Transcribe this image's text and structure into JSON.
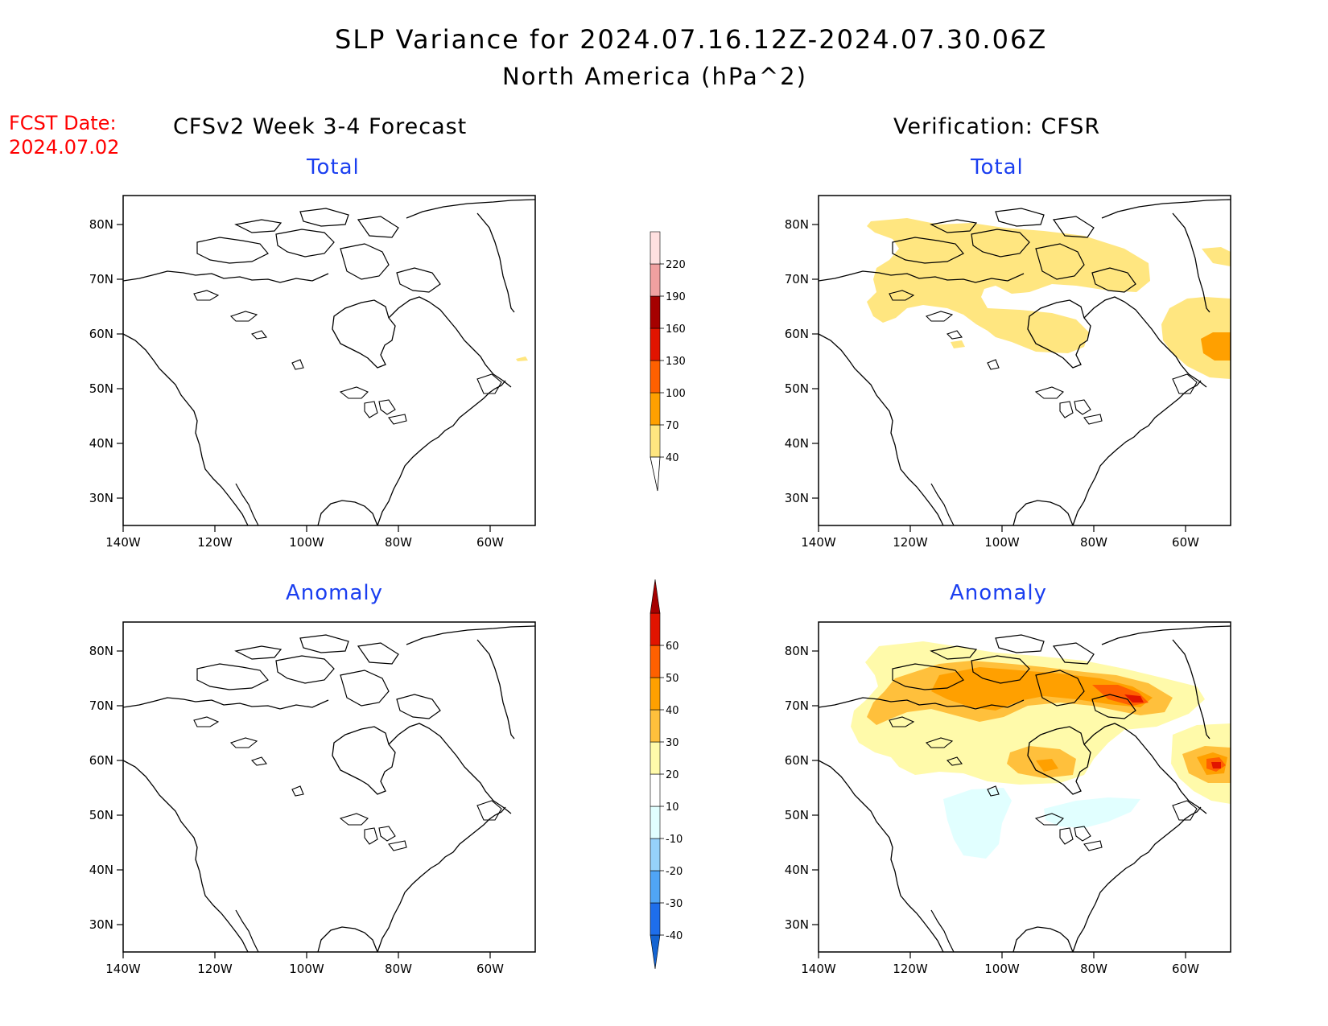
{
  "header": {
    "title": "SLP Variance for 2024.07.16.12Z-2024.07.30.06Z",
    "subtitle": "North America (hPa^2)",
    "fcst_label": "FCST Date:",
    "fcst_date": "2024.07.02",
    "left_column": "CFSv2 Week 3-4 Forecast",
    "right_column": "Verification: CFSR"
  },
  "panels": {
    "top_left": {
      "title": "Total"
    },
    "top_right": {
      "title": "Total"
    },
    "bottom_left": {
      "title": "Anomaly"
    },
    "bottom_right": {
      "title": "Anomaly"
    }
  },
  "axes": {
    "x_ticks": [
      "140W",
      "120W",
      "100W",
      "80W",
      "60W"
    ],
    "y_ticks": [
      "80N",
      "70N",
      "60N",
      "50N",
      "40N",
      "30N"
    ]
  },
  "colorbars": {
    "total": {
      "labels": [
        "40",
        "70",
        "100",
        "130",
        "160",
        "190",
        "220"
      ],
      "colors": [
        "#ffe680",
        "#ffa000",
        "#ff6000",
        "#e11400",
        "#a50000",
        "#f0a0a0",
        "#ffe0e0"
      ]
    },
    "anomaly": {
      "labels": [
        "-40",
        "-30",
        "-20",
        "-10",
        "10",
        "20",
        "30",
        "40",
        "50",
        "60"
      ],
      "colors": [
        "#1464d2",
        "#1e6eeb",
        "#50a5f5",
        "#96d2fa",
        "#e1ffff",
        "#ffffff",
        "#fffaaa",
        "#ffc03c",
        "#ffa000",
        "#ff6000",
        "#e11400",
        "#a50000"
      ]
    }
  }
}
